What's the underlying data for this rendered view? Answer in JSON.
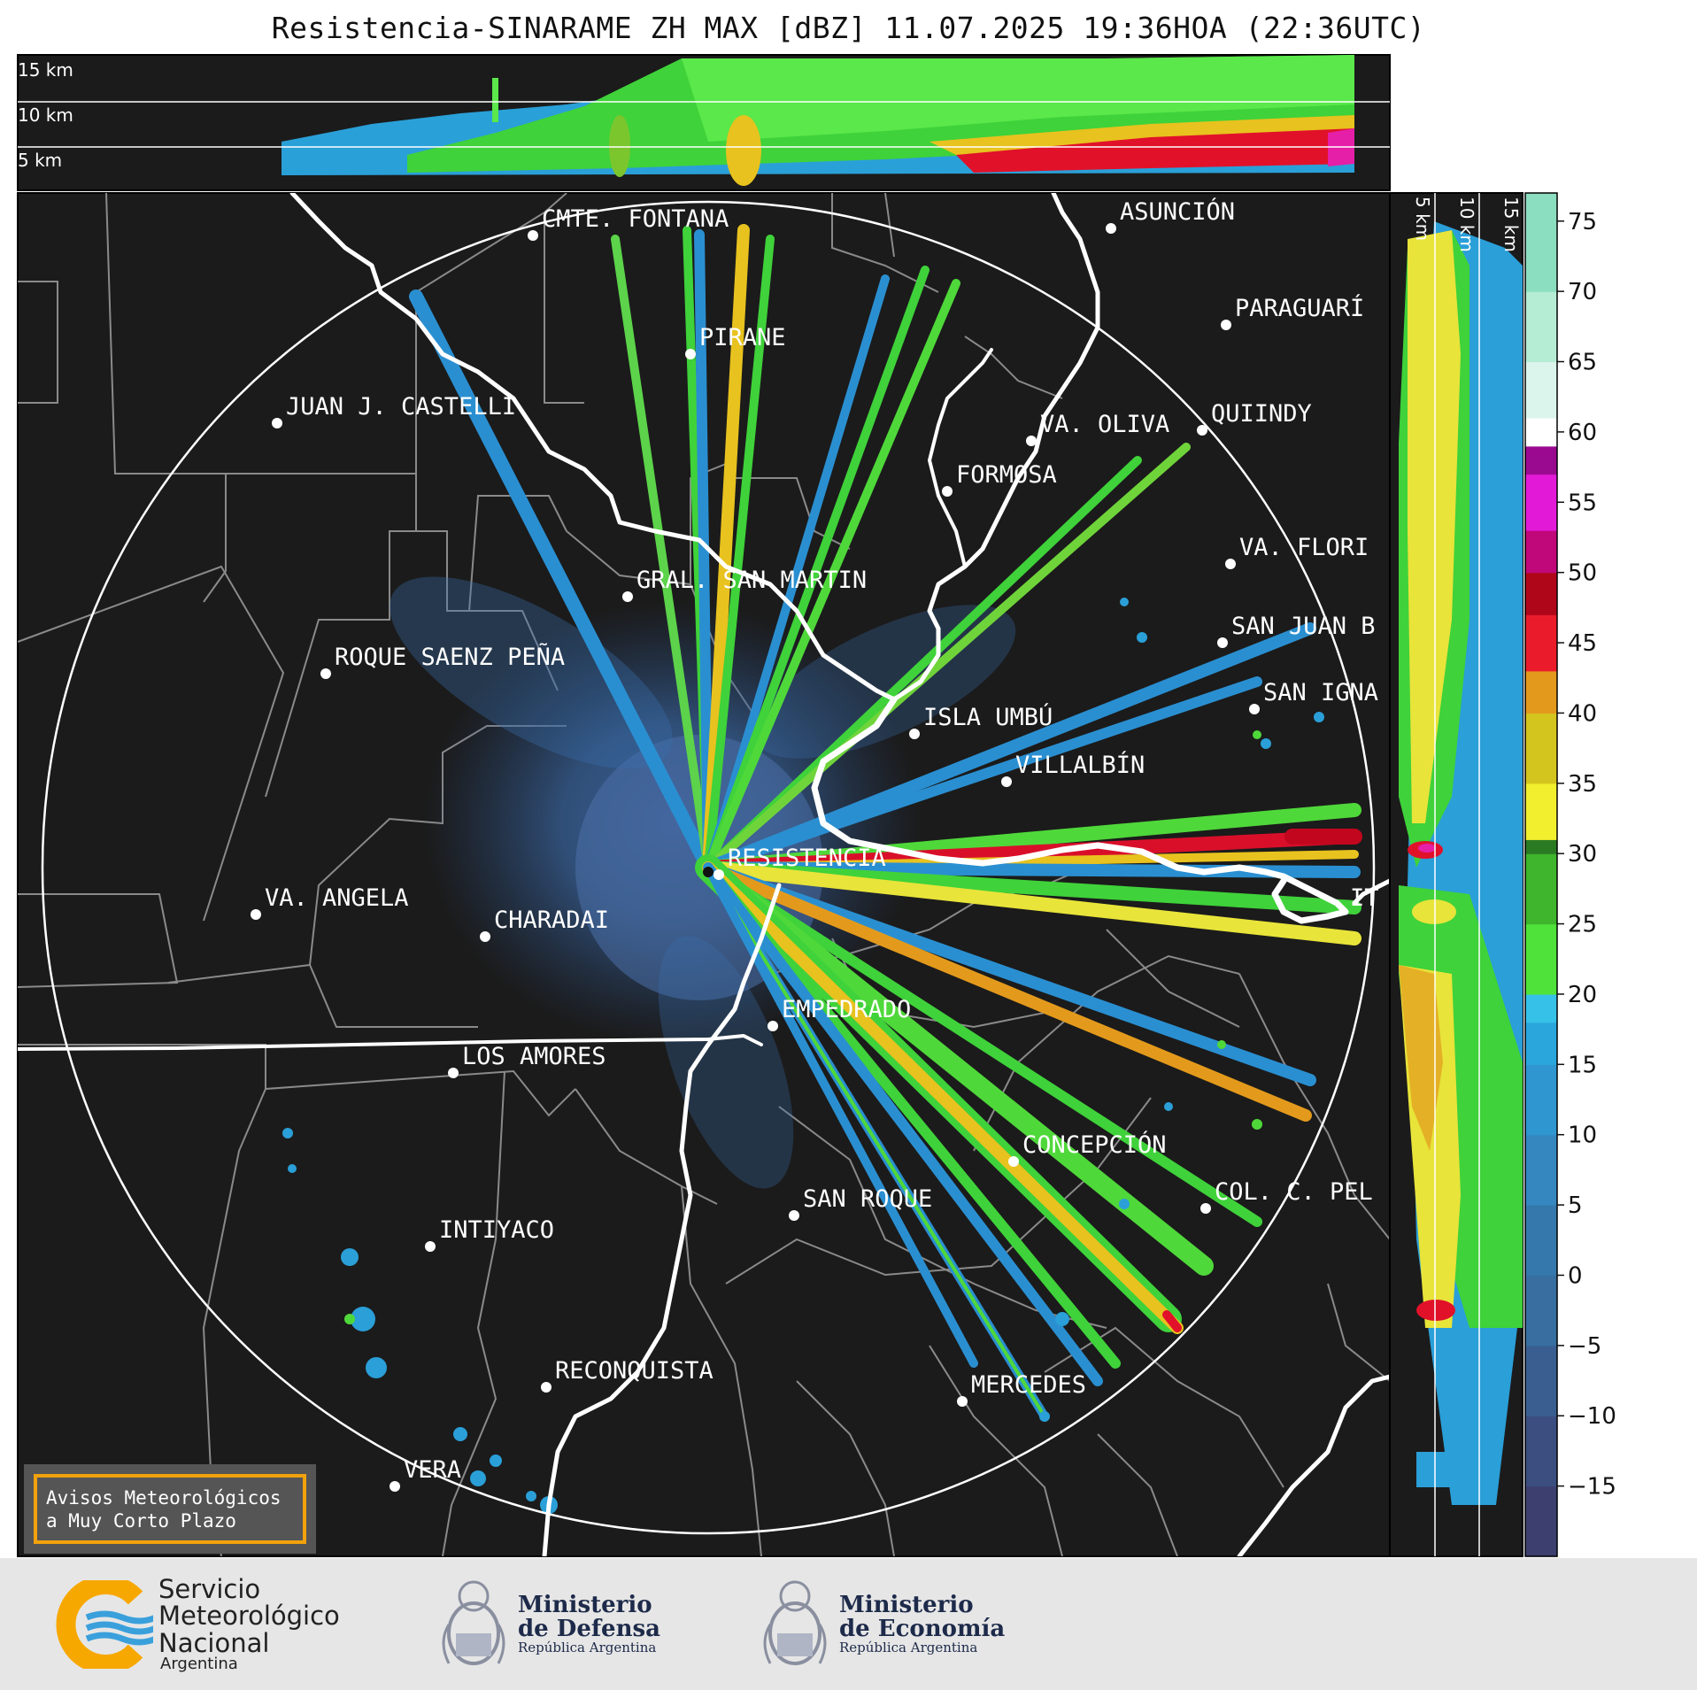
{
  "title": "Resistencia-SINARAME ZH MAX [dBZ] 11.07.2025 19:36HOA (22:36UTC)",
  "height_labels": [
    "15 km",
    "10 km",
    "5 km"
  ],
  "vertical_height_labels": [
    "5 km",
    "10 km",
    "15 km"
  ],
  "colorbar": {
    "unit": "dBZ",
    "ticks": [
      "75",
      "70",
      "65",
      "60",
      "55",
      "50",
      "45",
      "40",
      "35",
      "30",
      "25",
      "20",
      "15",
      "10",
      "5",
      "0",
      "−5",
      "−10",
      "−15"
    ],
    "range": [
      -20,
      77
    ]
  },
  "cities": [
    {
      "name": "CMTE. FONTANA"
    },
    {
      "name": "ASUNCIÓN"
    },
    {
      "name": "PARAGUARÍ"
    },
    {
      "name": "PIRANE"
    },
    {
      "name": "JUAN J. CASTELLI"
    },
    {
      "name": "VA. OLIVA"
    },
    {
      "name": "QUIINDY"
    },
    {
      "name": "FORMOSA"
    },
    {
      "name": "VA. FLORI"
    },
    {
      "name": "GRAL. SAN MARTIN"
    },
    {
      "name": "SAN JUAN B"
    },
    {
      "name": "ROQUE SAENZ PEÑA"
    },
    {
      "name": "SAN IGNA"
    },
    {
      "name": "ISLA UMBÚ"
    },
    {
      "name": "VILLALBÍN"
    },
    {
      "name": "RESISTENCIA"
    },
    {
      "name": "VA. ANGELA"
    },
    {
      "name": "CHARADAI"
    },
    {
      "name": "IT"
    },
    {
      "name": "EMPEDRADO"
    },
    {
      "name": "LOS AMORES"
    },
    {
      "name": "CONCEPCIÓN"
    },
    {
      "name": "COL. C. PEL"
    },
    {
      "name": "SAN ROQUE"
    },
    {
      "name": "INTIYACO"
    },
    {
      "name": "RECONQUISTA"
    },
    {
      "name": "MERCEDES"
    },
    {
      "name": "VERA"
    }
  ],
  "avisos": {
    "line1": "Avisos Meteorológicos",
    "line2": "a Muy Corto Plazo"
  },
  "logos": {
    "smn": {
      "line1": "Servicio",
      "line2": "Meteorológico",
      "line3": "Nacional",
      "sub": "Argentina"
    },
    "defensa": {
      "line1": "Ministerio",
      "line2": "de Defensa",
      "sub": "República Argentina"
    },
    "economia": {
      "line1": "Ministerio",
      "line2": "de Economía",
      "sub": "República Argentina"
    }
  },
  "colors": {
    "background": "#1b1b1b",
    "river": "#ffffff",
    "borders": "#8a8a8a"
  }
}
